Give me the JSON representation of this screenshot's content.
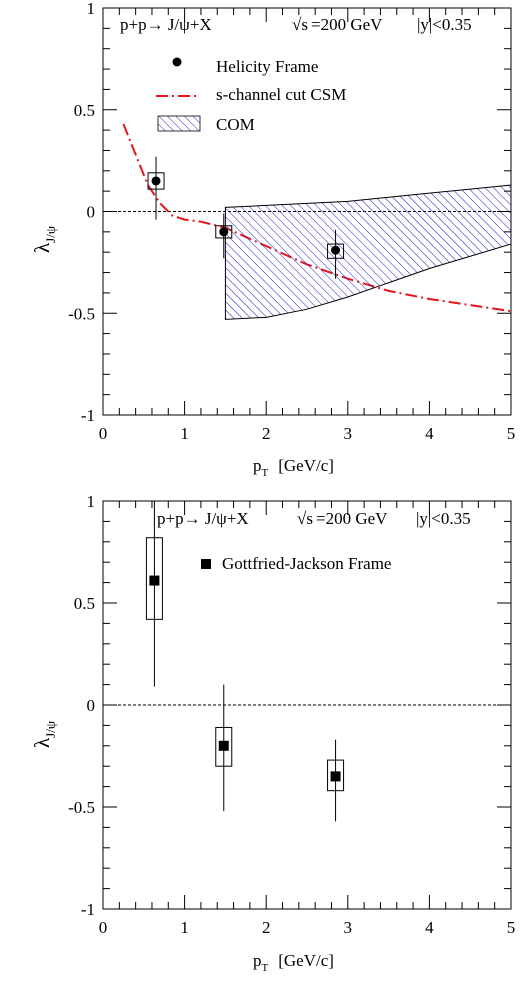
{
  "colors": {
    "axis": "#000000",
    "csm_line": "#e8141c",
    "com_band": "#1a1ac8",
    "marker": "#000000"
  },
  "chart_data": [
    {
      "type": "scatter",
      "title": "",
      "header": {
        "reaction": "p+p→ J/ψ+X",
        "energy_sqrt": "√s",
        "energy_rest": "=200 GeV",
        "rapidity": "|y|<0.35"
      },
      "xlabel": "p",
      "xlabel_sub": "T",
      "xlabel_unit": "[GeV/c]",
      "ylabel": "λ",
      "ylabel_sub": "J/ψ",
      "xlim": [
        0,
        5
      ],
      "ylim": [
        -1,
        1
      ],
      "x_ticks": [
        "0",
        "1",
        "2",
        "3",
        "4",
        "5"
      ],
      "y_ticks": [
        "-1",
        "-0.5",
        "0",
        "0.5",
        "1"
      ],
      "zero_line": true,
      "legend_position": "top-center",
      "legend": [
        {
          "label": "Helicity Frame",
          "symbol": "circle"
        },
        {
          "label": "s-channel cut CSM",
          "symbol": "dash-dot-line"
        },
        {
          "label": "COM",
          "symbol": "hatched-band"
        }
      ],
      "series": [
        {
          "name": "Helicity Frame",
          "marker": "circle",
          "points": [
            {
              "x": 0.65,
              "y": 0.15,
              "stat_lo": -0.04,
              "stat_hi": 0.27,
              "sys_lo": 0.11,
              "sys_hi": 0.19
            },
            {
              "x": 1.48,
              "y": -0.1,
              "stat_lo": -0.23,
              "stat_hi": -0.01,
              "sys_lo": -0.13,
              "sys_hi": -0.07
            },
            {
              "x": 2.85,
              "y": -0.19,
              "stat_lo": -0.33,
              "stat_hi": -0.09,
              "sys_lo": -0.23,
              "sys_hi": -0.16
            }
          ]
        },
        {
          "name": "s-channel cut CSM",
          "line": "dash-dot",
          "x": [
            0.25,
            0.4,
            0.55,
            0.7,
            0.85,
            1.0,
            1.2,
            1.5,
            2.0,
            2.5,
            3.0,
            3.5,
            4.0,
            4.5,
            5.0
          ],
          "y": [
            0.43,
            0.28,
            0.13,
            0.04,
            -0.02,
            -0.04,
            -0.05,
            -0.08,
            -0.17,
            -0.26,
            -0.33,
            -0.39,
            -0.43,
            -0.46,
            -0.49
          ]
        },
        {
          "name": "COM",
          "band": "hatched",
          "x": [
            1.5,
            2.0,
            2.5,
            3.0,
            3.5,
            4.0,
            4.5,
            5.0
          ],
          "upper": [
            0.02,
            0.03,
            0.04,
            0.05,
            0.07,
            0.09,
            0.11,
            0.13
          ],
          "lower": [
            -0.53,
            -0.52,
            -0.48,
            -0.42,
            -0.35,
            -0.28,
            -0.22,
            -0.16
          ]
        }
      ]
    },
    {
      "type": "scatter",
      "title": "",
      "header": {
        "reaction": "p+p→ J/ψ+X",
        "energy_sqrt": "√s",
        "energy_rest": "=200 GeV",
        "rapidity": "|y|<0.35"
      },
      "xlabel": "p",
      "xlabel_sub": "T",
      "xlabel_unit": "[GeV/c]",
      "ylabel": "λ",
      "ylabel_sub": "J/ψ",
      "xlim": [
        0,
        5
      ],
      "ylim": [
        -1,
        1
      ],
      "x_ticks": [
        "0",
        "1",
        "2",
        "3",
        "4",
        "5"
      ],
      "y_ticks": [
        "-1",
        "-0.5",
        "0",
        "0.5",
        "1"
      ],
      "zero_line": true,
      "legend_position": "top-right",
      "legend": [
        {
          "label": "Gottfried-Jackson Frame",
          "symbol": "square"
        }
      ],
      "series": [
        {
          "name": "Gottfried-Jackson Frame",
          "marker": "square",
          "points": [
            {
              "x": 0.63,
              "y": 0.61,
              "stat_lo": 0.09,
              "stat_hi": 1.0,
              "sys_lo": 0.42,
              "sys_hi": 0.82
            },
            {
              "x": 1.48,
              "y": -0.2,
              "stat_lo": -0.52,
              "stat_hi": 0.1,
              "sys_lo": -0.3,
              "sys_hi": -0.11
            },
            {
              "x": 2.85,
              "y": -0.35,
              "stat_lo": -0.57,
              "stat_hi": -0.17,
              "sys_lo": -0.42,
              "sys_hi": -0.27
            }
          ]
        }
      ]
    }
  ]
}
